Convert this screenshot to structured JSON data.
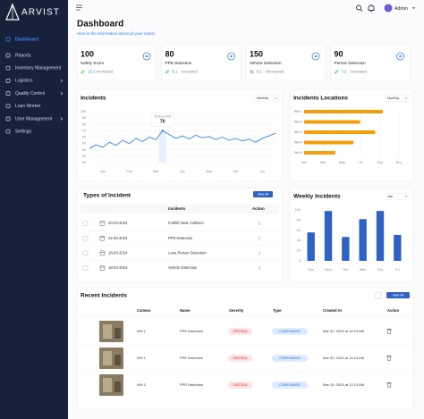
{
  "sidebar": {
    "logo": "ARVIST",
    "nav": [
      {
        "label": "Dashboard",
        "active": true
      },
      {
        "label": "Reports"
      },
      {
        "label": "Inventory Management"
      },
      {
        "label": "Logistics",
        "submenu": true
      },
      {
        "label": "Quality Control",
        "submenu": true
      },
      {
        "label": "Loan Worker"
      },
      {
        "label": "User Management",
        "submenu": true
      },
      {
        "label": "Settings"
      }
    ]
  },
  "header": {
    "user": "Admin"
  },
  "page": {
    "title": "Dashboard",
    "subtitle": "Here is the information about all your orders"
  },
  "stats": [
    {
      "value": 100,
      "label": "Safety Score",
      "change": 13.3,
      "trend": "Increased"
    },
    {
      "value": 80,
      "label": "PPE Detection",
      "change": 5.1,
      "trend": "Increased"
    },
    {
      "value": 150,
      "label": "Vehicle Detection",
      "change": 5.1,
      "trend": "Decreased"
    },
    {
      "value": 90,
      "label": "Person Detection",
      "change": 7.3,
      "trend": "Increased"
    }
  ],
  "chart_data": [
    {
      "type": "line",
      "title": "Incidents",
      "dropdown": "Monthly",
      "color": "#3b82f6",
      "x": [
        0,
        1,
        2,
        3,
        4,
        5,
        6,
        7,
        8,
        9,
        10,
        11,
        12,
        13,
        14,
        15,
        16,
        17,
        18,
        19,
        20,
        21,
        22,
        23,
        24,
        25,
        26,
        27,
        28
      ],
      "values": [
        42,
        48,
        44,
        52,
        47,
        55,
        50,
        58,
        53,
        60,
        56,
        70,
        64,
        58,
        62,
        57,
        63,
        59,
        61,
        56,
        60,
        55,
        58,
        54,
        57,
        52,
        58,
        62,
        66
      ],
      "xlim": [
        0,
        28
      ],
      "xticks": [
        {
          "value": 2,
          "label": "Jan"
        },
        {
          "value": 6,
          "label": "Feb"
        },
        {
          "value": 10,
          "label": "Mar"
        },
        {
          "value": 14,
          "label": "Apr"
        },
        {
          "value": 18,
          "label": "May"
        },
        {
          "value": 22,
          "label": "Jun"
        },
        {
          "value": 26,
          "label": "Jul"
        }
      ],
      "ylim": [
        20,
        100
      ],
      "yticks": [
        20,
        30,
        40,
        50,
        60,
        70,
        80,
        90,
        100
      ],
      "grid": true,
      "tooltip": {
        "label": "15 Aug 2024",
        "value": 70
      }
    },
    {
      "type": "bar",
      "orientation": "horizontal",
      "title": "Incidents Locations",
      "dropdown": "Monthly",
      "color": "#f59e0b",
      "categories": [
        "WH 1",
        "WH 2",
        "WH 3",
        "WH 4",
        "WH 5"
      ],
      "values": [
        8.3,
        5.9,
        7.5,
        5.2,
        3.3
      ],
      "xlim": [
        0,
        10
      ],
      "xticks": [
        {
          "value": 0,
          "label": "Jan"
        },
        {
          "value": 2,
          "label": "Mar"
        },
        {
          "value": 4,
          "label": "May"
        },
        {
          "value": 6,
          "label": "Jul"
        },
        {
          "value": 8,
          "label": "Sep"
        },
        {
          "value": 10,
          "label": "Nov"
        }
      ],
      "grid": true
    },
    {
      "type": "bar",
      "orientation": "vertical",
      "title": "Weekly Incidents",
      "dropdown": "Jan",
      "color": "#2f62c4",
      "categories": [
        "Sun",
        "Mon",
        "Tue",
        "Wed",
        "Thu",
        "Fri"
      ],
      "values": [
        56,
        98,
        47,
        82,
        98,
        51
      ],
      "ylim": [
        0,
        100
      ],
      "yticks": [
        0,
        20,
        40,
        60,
        80,
        100
      ],
      "grid": false
    }
  ],
  "types_of_incident": {
    "title": "Types of Incident",
    "button": "View All",
    "columns": [
      "Incidents",
      "Action"
    ],
    "rows": [
      [
        "20-03-2024",
        "Forklift Near Collision"
      ],
      [
        "22-03-2024",
        "PPE Detection"
      ],
      [
        "18-03-2024",
        "Lone Person Detection"
      ],
      [
        "18-03-2024",
        "Vehicle Detection"
      ]
    ]
  },
  "recent_incidents": {
    "title": "Recent Incidents",
    "button": "View All",
    "columns": [
      "Camera",
      "Name",
      "Severity",
      "Type",
      "Created At",
      "Action"
    ],
    "rows": [
      [
        "WH 1",
        "PPE Detection",
        "CRITICAL",
        "COMPLIANCE",
        "Mar 20, 2024 at 12:13 AM"
      ],
      [
        "WH 1",
        "PPE Detection",
        "CRITICAL",
        "COMPLIANCE",
        "Mar 20, 2024 at 12:13 AM"
      ],
      [
        "WH 1",
        "PPE Detection",
        "CRITICAL",
        "COMPLIANCE",
        "Mar 20, 2024 at 12:13 AM"
      ]
    ]
  }
}
